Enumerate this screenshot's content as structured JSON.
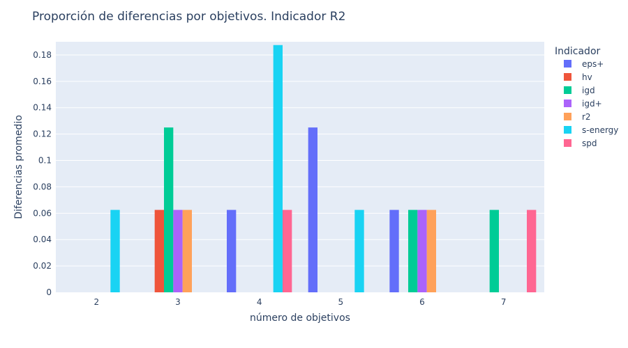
{
  "chart_data": {
    "type": "bar",
    "title": "Proporción de diferencias por objetivos. Indicador R2",
    "xlabel": "número de objetivos",
    "ylabel": "Diferencias promedio",
    "legend_title": "Indicador",
    "legend_position": "right",
    "grid": true,
    "categories": [
      "2",
      "3",
      "4",
      "5",
      "6",
      "7"
    ],
    "ylim": [
      0,
      0.19
    ],
    "yticks": [
      "0",
      "0.02",
      "0.04",
      "0.06",
      "0.08",
      "0.1",
      "0.12",
      "0.14",
      "0.16",
      "0.18"
    ],
    "ytick_values": [
      0,
      0.02,
      0.04,
      0.06,
      0.08,
      0.1,
      0.12,
      0.14,
      0.16,
      0.18
    ],
    "series": [
      {
        "name": "eps+",
        "color": "#636efa",
        "values": [
          null,
          null,
          0.0625,
          0.125,
          0.0625,
          null
        ]
      },
      {
        "name": "hv",
        "color": "#ef553b",
        "values": [
          null,
          0.0625,
          null,
          null,
          null,
          null
        ]
      },
      {
        "name": "igd",
        "color": "#00cc96",
        "values": [
          null,
          0.125,
          null,
          null,
          0.0625,
          0.0625
        ]
      },
      {
        "name": "igd+",
        "color": "#ab63fa",
        "values": [
          null,
          0.0625,
          null,
          null,
          0.0625,
          null
        ]
      },
      {
        "name": "r2",
        "color": "#ffa15a",
        "values": [
          null,
          0.0625,
          null,
          null,
          0.0625,
          null
        ]
      },
      {
        "name": "s-energy",
        "color": "#19d3f3",
        "values": [
          0.0625,
          null,
          0.1875,
          0.0625,
          null,
          null
        ]
      },
      {
        "name": "spd",
        "color": "#ff6692",
        "values": [
          null,
          null,
          0.0625,
          null,
          null,
          0.0625
        ]
      }
    ]
  }
}
